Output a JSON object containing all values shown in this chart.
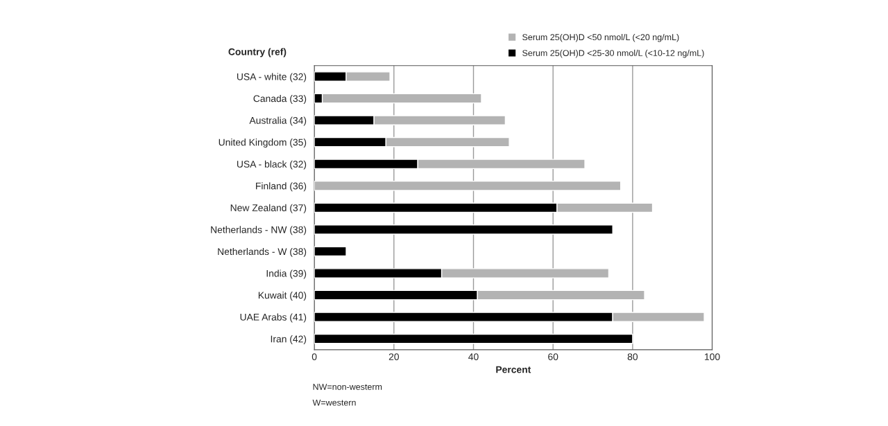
{
  "chart_data": {
    "type": "bar",
    "orientation": "horizontal",
    "stacked": true,
    "ylabel": "Country (ref)",
    "xlabel": "Percent",
    "categories": [
      "USA - white (32)",
      "Canada (33)",
      "Australia (34)",
      "United Kingdom (35)",
      "USA - black (32)",
      "Finland (36)",
      "New Zealand (37)",
      "Netherlands - NW (38)",
      "Netherlands - W (38)",
      "India (39)",
      "Kuwait (40)",
      "UAE Arabs (41)",
      "Iran (42)"
    ],
    "series": [
      {
        "name": "Serum 25(OH)D <25-30 nmol/L (<10-12 ng/mL)",
        "color": "#000000",
        "values": [
          8,
          2,
          15,
          18,
          26,
          null,
          61,
          75,
          8,
          32,
          41,
          75,
          80
        ]
      },
      {
        "name": "Serum 25(OH)D <50 nmol/L (<20 ng/mL)",
        "color": "#b3b3b3",
        "values": [
          11,
          40,
          33,
          31,
          42,
          77,
          24,
          null,
          null,
          42,
          42,
          23,
          null
        ]
      }
    ],
    "xlim": [
      0,
      100
    ],
    "xticks": [
      0,
      20,
      40,
      60,
      80,
      100
    ],
    "grid": "x",
    "legend": "top right",
    "annotations": [
      "NW=non-westerm",
      "W=western"
    ]
  }
}
